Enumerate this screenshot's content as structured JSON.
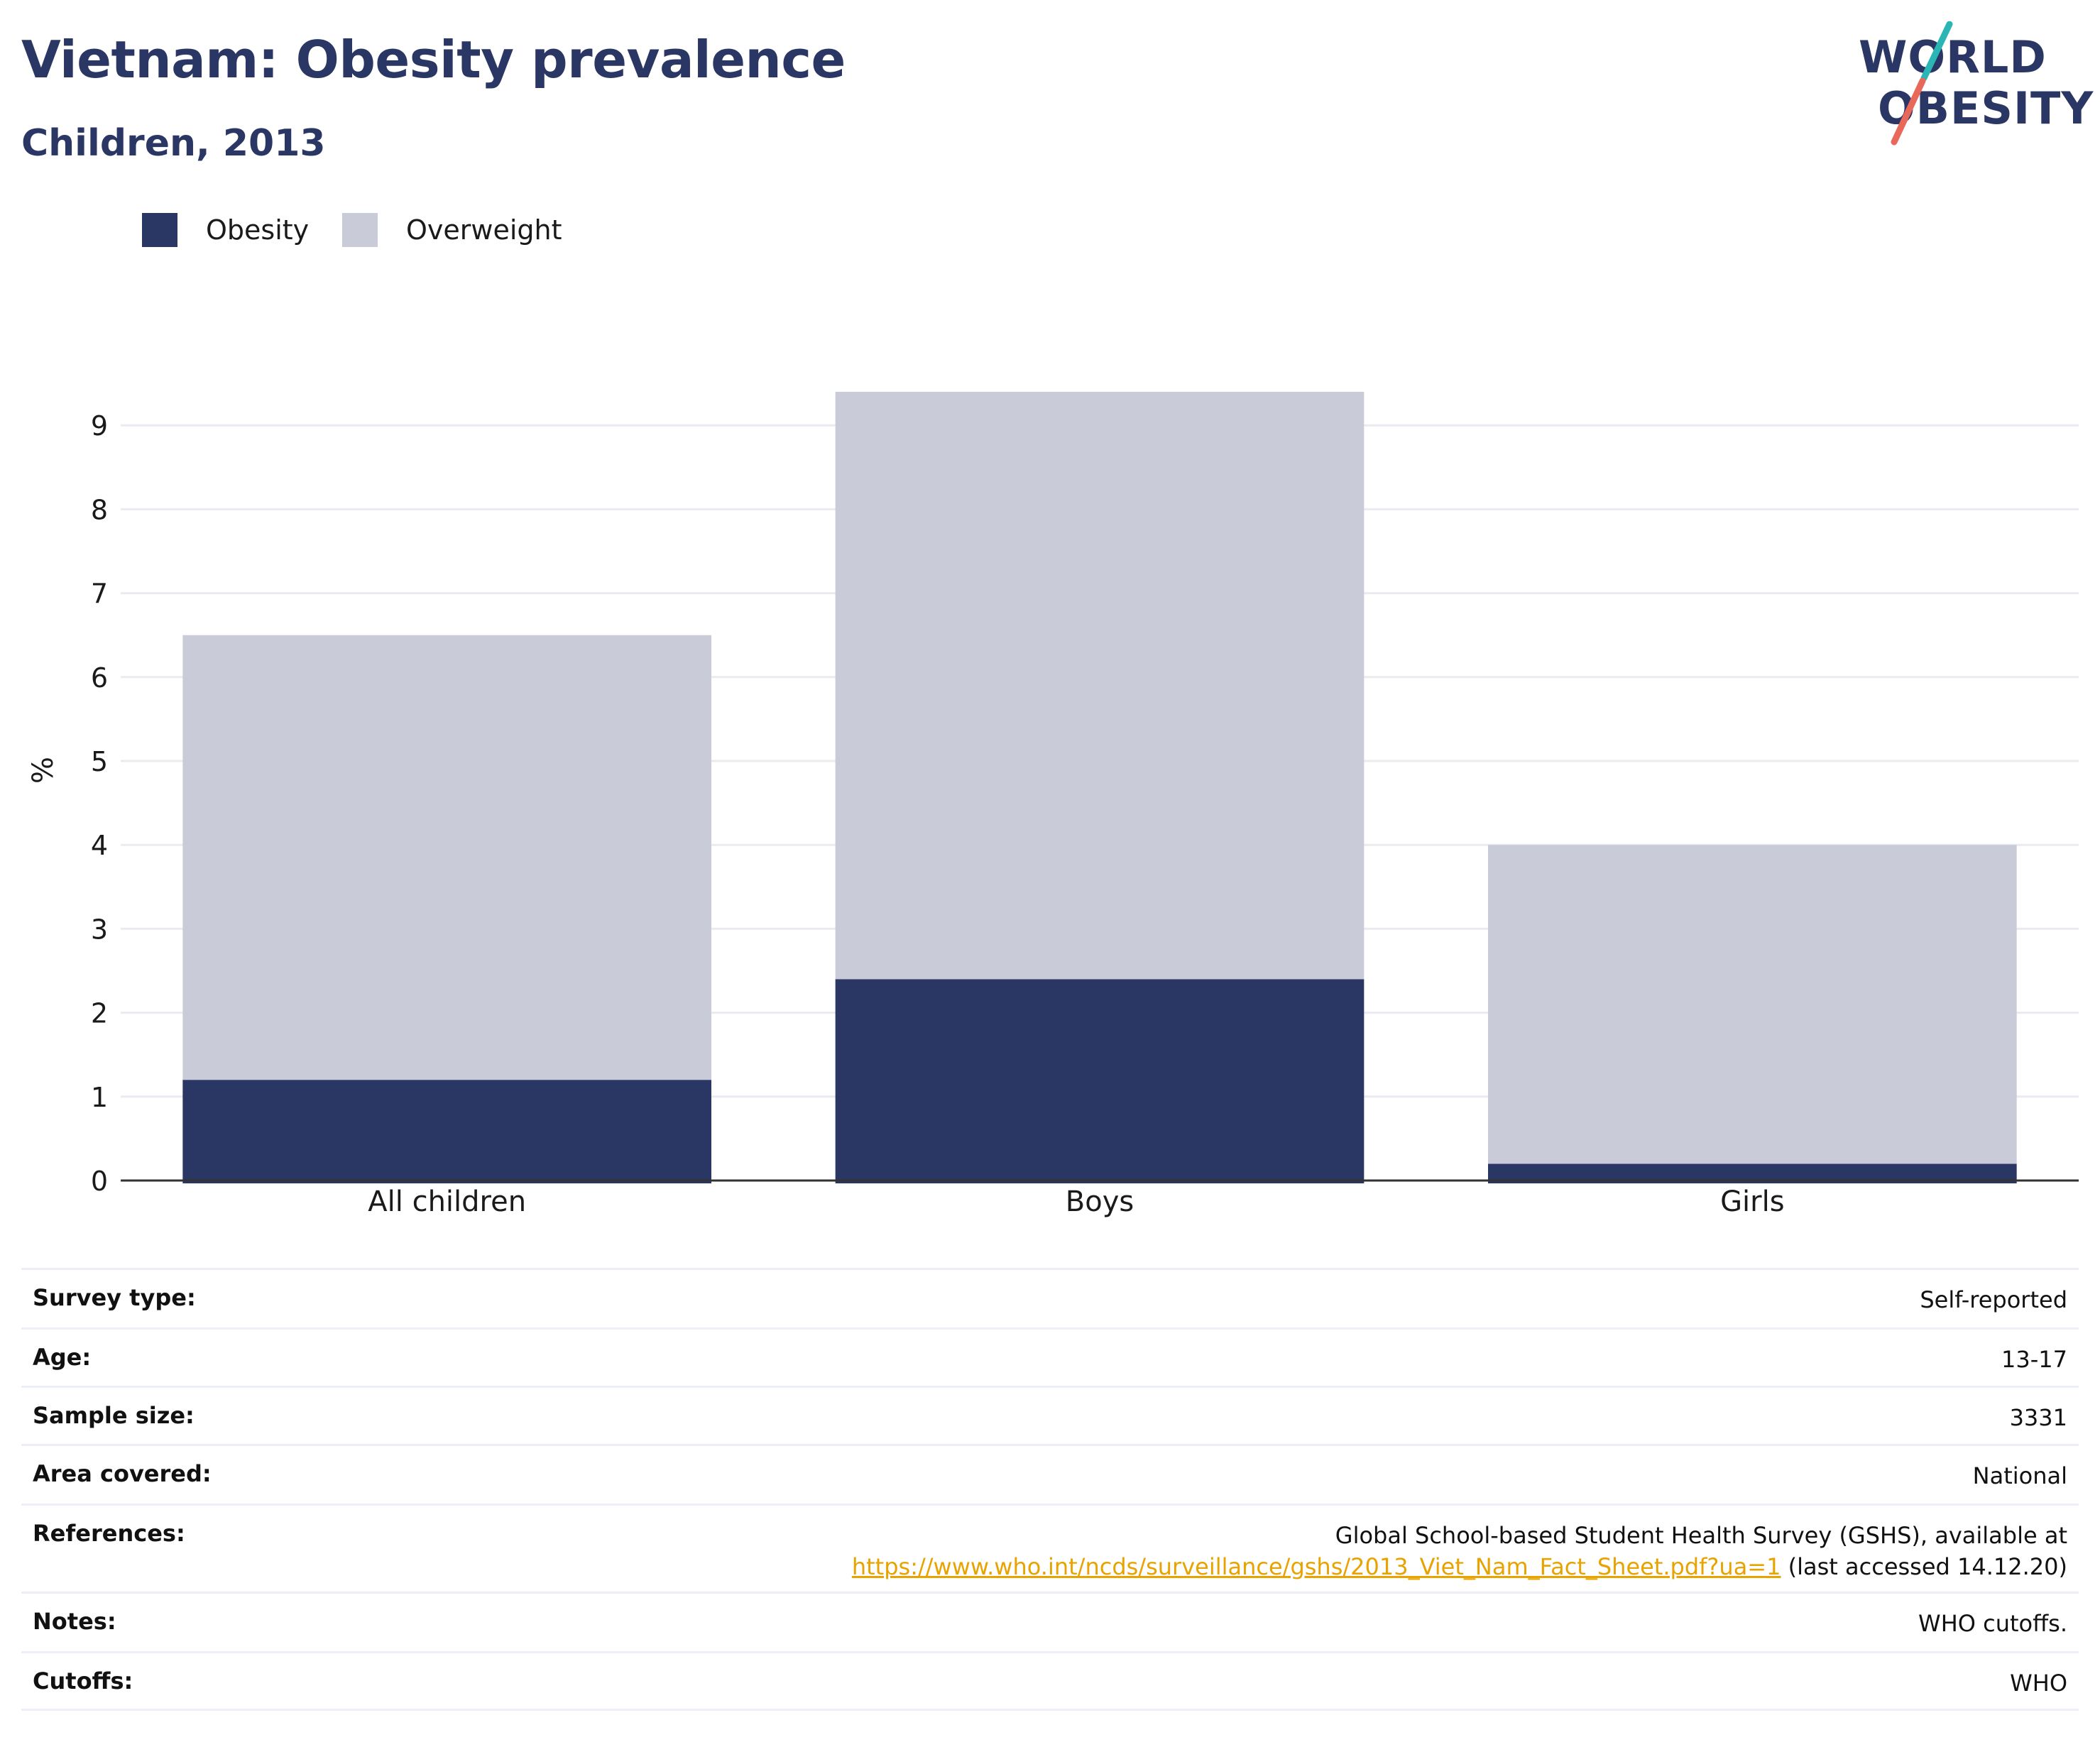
{
  "header": {
    "title": "Vietnam: Obesity prevalence",
    "subtitle": "Children, 2013"
  },
  "logo": {
    "line1": "WORLD",
    "line2": "OBESITY"
  },
  "colors": {
    "obesity": "#2a3663",
    "overweight": "#c9ccd8",
    "link": "#e8a300",
    "logo_teal": "#2bb5b5",
    "logo_coral": "#e8685a"
  },
  "chart_data": {
    "type": "bar",
    "stacked": true,
    "categories": [
      "All children",
      "Boys",
      "Girls"
    ],
    "series": [
      {
        "name": "Obesity",
        "values": [
          1.2,
          2.4,
          0.2
        ]
      },
      {
        "name": "Overweight",
        "values": [
          5.3,
          7.0,
          3.8
        ]
      }
    ],
    "ylabel": "%",
    "xlabel": "",
    "ylim": [
      0,
      9.8
    ],
    "yticks": [
      0,
      1,
      2,
      3,
      4,
      5,
      6,
      7,
      8,
      9
    ],
    "grid": true,
    "legend_placement": "top-left"
  },
  "info": {
    "rows": [
      {
        "label": "Survey type:",
        "value": "Self-reported"
      },
      {
        "label": "Age:",
        "value": "13-17"
      },
      {
        "label": "Sample size:",
        "value": "3331"
      },
      {
        "label": "Area covered:",
        "value": "National"
      },
      {
        "label": "References:",
        "value": "Global School-based Student Health Survey (GSHS), available at",
        "link": "https://www.who.int/ncds/surveillance/gshs/2013_Viet_Nam_Fact_Sheet.pdf?ua=1",
        "suffix": " (last accessed 14.12.20)"
      },
      {
        "label": "Notes:",
        "value": "WHO cutoffs."
      },
      {
        "label": "Cutoffs:",
        "value": "WHO"
      }
    ]
  }
}
